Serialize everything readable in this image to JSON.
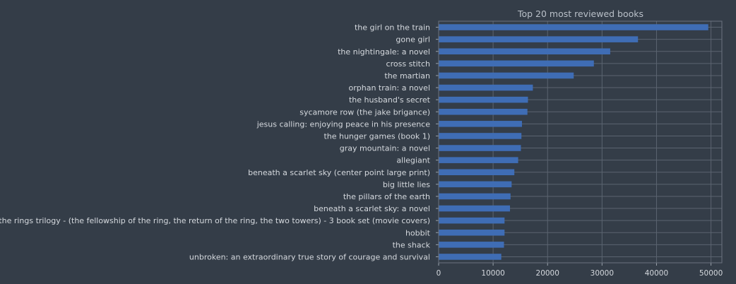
{
  "chart_data": {
    "type": "bar",
    "orientation": "horizontal",
    "title": "Top 20 most reviewed books",
    "xlabel": "",
    "ylabel": "",
    "xlim": [
      0,
      52000
    ],
    "xticks": [
      0,
      10000,
      20000,
      30000,
      40000,
      50000
    ],
    "grid": true,
    "bar_color": "#3f6db5",
    "grid_color": "#5b6470",
    "background": "#343d48",
    "categories": [
      "the girl on the train",
      "gone girl",
      "the nightingale: a novel",
      "cross stitch",
      "the martian",
      "orphan train: a novel",
      "the husband's secret",
      "sycamore row (the jake brigance)",
      "jesus calling: enjoying peace in his presence",
      "the hunger games (book 1)",
      "gray mountain: a novel",
      "allegiant",
      "beneath a scarlet sky (center point large print)",
      "big little lies",
      "the pillars of the earth",
      "beneath a scarlet sky: a novel",
      "the lord of the rings trilogy - (the fellowship of the ring, the return of the ring, the two towers) - 3 book set (movie covers)",
      "hobbit",
      "the shack",
      "unbroken: an extraordinary true story of courage and survival"
    ],
    "values": [
      49500,
      36600,
      31500,
      28500,
      24800,
      17300,
      16400,
      16300,
      15300,
      15200,
      15100,
      14600,
      13900,
      13400,
      13200,
      13100,
      12100,
      12100,
      12000,
      11500
    ]
  }
}
